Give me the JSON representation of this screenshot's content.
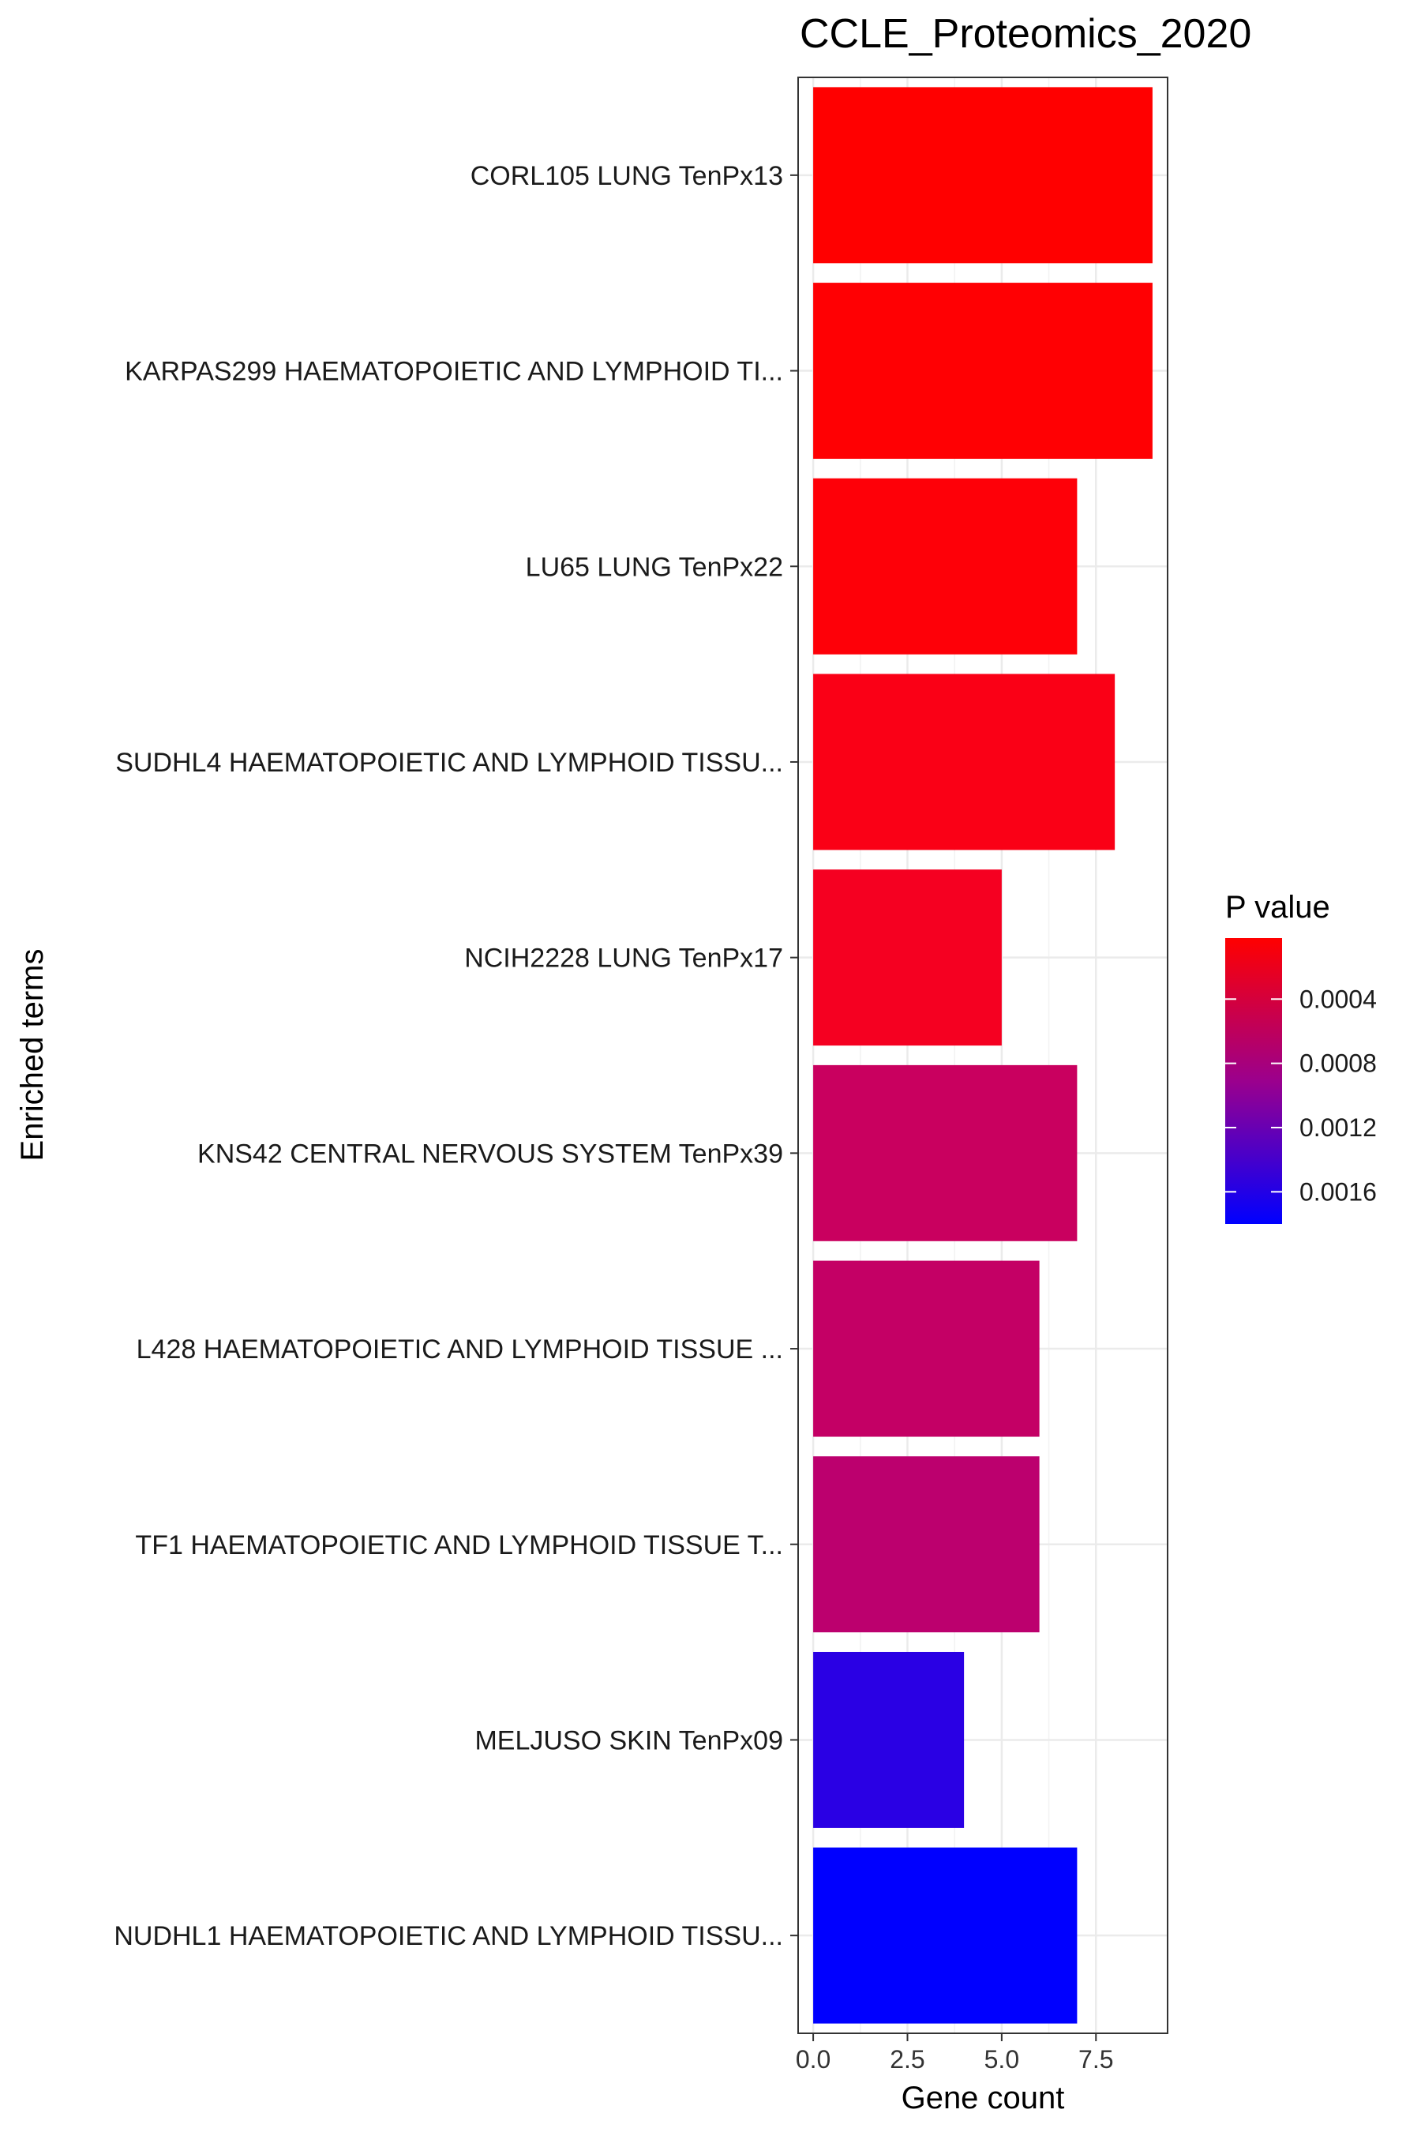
{
  "chart_data": {
    "type": "bar",
    "orientation": "horizontal",
    "title": "CCLE_Proteomics_2020",
    "xlabel": "Gene count",
    "ylabel": "Enriched terms",
    "xlim": [
      -0.4,
      9.4
    ],
    "xticks": [
      0,
      2.5,
      5,
      7.5
    ],
    "xtick_labels": [
      "0.0",
      "2.5",
      "5.0",
      "7.5"
    ],
    "grid": true,
    "categories": [
      "CORL105 LUNG TenPx13",
      "KARPAS299 HAEMATOPOIETIC AND LYMPHOID TI...",
      "LU65 LUNG TenPx22",
      "SUDHL4 HAEMATOPOIETIC AND LYMPHOID TISSU...",
      "NCIH2228 LUNG TenPx17",
      "KNS42 CENTRAL NERVOUS SYSTEM TenPx39",
      "L428 HAEMATOPOIETIC AND LYMPHOID TISSUE ...",
      "TF1 HAEMATOPOIETIC AND LYMPHOID TISSUE T...",
      "MELJUSO SKIN TenPx09",
      "NUDHL1 HAEMATOPOIETIC AND LYMPHOID TISSU..."
    ],
    "values": [
      9,
      9,
      7,
      8,
      5,
      7,
      6,
      6,
      4,
      7
    ],
    "p_values": [
      2e-05,
      3e-05,
      5e-05,
      0.00012,
      0.00018,
      0.00058,
      0.00062,
      0.00068,
      0.00158,
      0.0018
    ],
    "legend": {
      "title": "P value",
      "position": "right",
      "range": [
        2e-05,
        0.0018
      ],
      "ticks": [
        0.0004,
        0.0008,
        0.0012,
        0.0016
      ],
      "tick_labels": [
        "0.0004",
        "0.0008",
        "0.0012",
        "0.0016"
      ],
      "color_low": "#ff0000",
      "color_high": "#0000ff"
    }
  }
}
